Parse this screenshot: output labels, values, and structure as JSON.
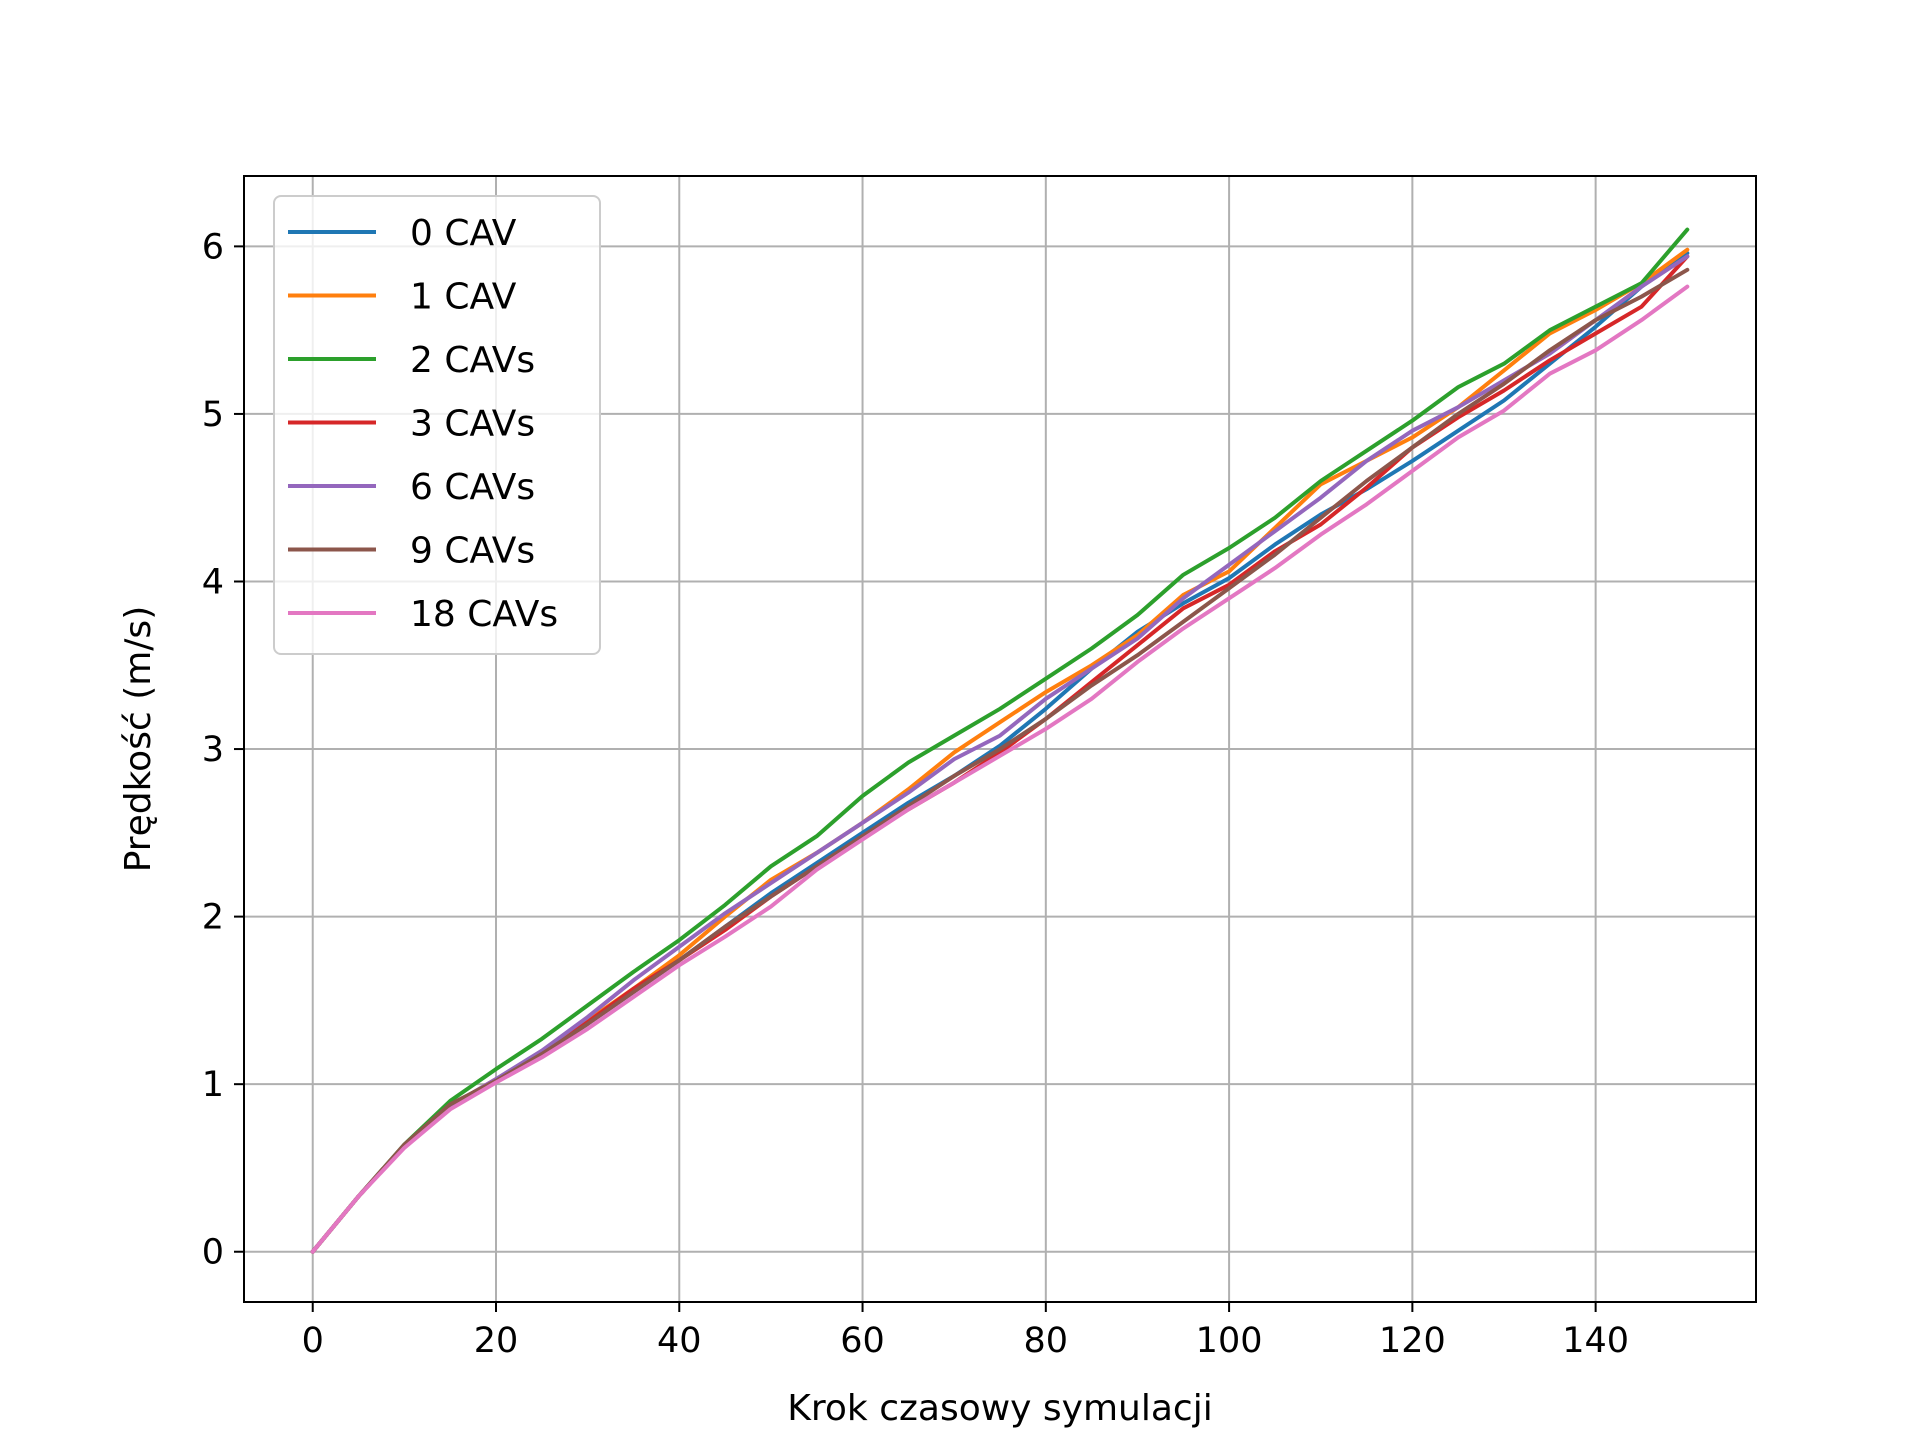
{
  "chart_data": {
    "type": "line",
    "title": "",
    "xlabel": "Krok czasowy symulacji",
    "ylabel": "Prędkość (m/s)",
    "xlim": [
      -7.5,
      157.5
    ],
    "ylim": [
      -0.3,
      6.42
    ],
    "xticks": [
      0,
      20,
      40,
      60,
      80,
      100,
      120,
      140
    ],
    "yticks": [
      0,
      1,
      2,
      3,
      4,
      5,
      6
    ],
    "grid": true,
    "legend_position": "upper-left",
    "series": [
      {
        "name": "0 CAV",
        "color": "#1f77b4",
        "x": [
          0,
          5,
          10,
          15,
          20,
          25,
          30,
          35,
          40,
          45,
          50,
          55,
          60,
          65,
          70,
          75,
          80,
          85,
          90,
          95,
          100,
          105,
          110,
          115,
          120,
          125,
          130,
          135,
          140,
          145,
          150
        ],
        "y": [
          0,
          0.33,
          0.63,
          0.86,
          1.02,
          1.18,
          1.36,
          1.55,
          1.74,
          1.94,
          2.14,
          2.32,
          2.5,
          2.68,
          2.84,
          3.02,
          3.24,
          3.48,
          3.7,
          3.87,
          4.02,
          4.22,
          4.4,
          4.55,
          4.72,
          4.9,
          5.08,
          5.3,
          5.52,
          5.76,
          5.96
        ]
      },
      {
        "name": "1 CAV",
        "color": "#ff7f0e",
        "x": [
          0,
          5,
          10,
          15,
          20,
          25,
          30,
          35,
          40,
          45,
          50,
          55,
          60,
          65,
          70,
          75,
          80,
          85,
          90,
          95,
          100,
          105,
          110,
          115,
          120,
          125,
          130,
          135,
          140,
          145,
          150
        ],
        "y": [
          0,
          0.33,
          0.63,
          0.86,
          1.02,
          1.19,
          1.38,
          1.57,
          1.77,
          2.0,
          2.22,
          2.38,
          2.56,
          2.76,
          2.98,
          3.16,
          3.34,
          3.5,
          3.68,
          3.92,
          4.06,
          4.32,
          4.58,
          4.72,
          4.86,
          5.04,
          5.26,
          5.48,
          5.62,
          5.78,
          5.98
        ]
      },
      {
        "name": "2 CAVs",
        "color": "#2ca02c",
        "x": [
          0,
          5,
          10,
          15,
          20,
          25,
          30,
          35,
          40,
          45,
          50,
          55,
          60,
          65,
          70,
          75,
          80,
          85,
          90,
          95,
          100,
          105,
          110,
          115,
          120,
          125,
          130,
          135,
          140,
          145,
          150
        ],
        "y": [
          0,
          0.33,
          0.64,
          0.9,
          1.09,
          1.27,
          1.47,
          1.67,
          1.86,
          2.07,
          2.3,
          2.48,
          2.72,
          2.92,
          3.08,
          3.24,
          3.42,
          3.6,
          3.8,
          4.04,
          4.2,
          4.38,
          4.6,
          4.78,
          4.96,
          5.16,
          5.3,
          5.5,
          5.64,
          5.78,
          6.1
        ]
      },
      {
        "name": "3 CAVs",
        "color": "#d62728",
        "x": [
          0,
          5,
          10,
          15,
          20,
          25,
          30,
          35,
          40,
          45,
          50,
          55,
          60,
          65,
          70,
          75,
          80,
          85,
          90,
          95,
          100,
          105,
          110,
          115,
          120,
          125,
          130,
          135,
          140,
          145,
          150
        ],
        "y": [
          0,
          0.33,
          0.63,
          0.87,
          1.03,
          1.18,
          1.37,
          1.57,
          1.74,
          1.92,
          2.12,
          2.3,
          2.48,
          2.64,
          2.8,
          2.98,
          3.18,
          3.4,
          3.62,
          3.84,
          3.98,
          4.18,
          4.34,
          4.56,
          4.8,
          4.98,
          5.14,
          5.32,
          5.48,
          5.64,
          5.94
        ]
      },
      {
        "name": "6 CAVs",
        "color": "#9467bd",
        "x": [
          0,
          5,
          10,
          15,
          20,
          25,
          30,
          35,
          40,
          45,
          50,
          55,
          60,
          65,
          70,
          75,
          80,
          85,
          90,
          95,
          100,
          105,
          110,
          115,
          120,
          125,
          130,
          135,
          140,
          145,
          150
        ],
        "y": [
          0,
          0.33,
          0.63,
          0.87,
          1.03,
          1.2,
          1.4,
          1.62,
          1.82,
          2.02,
          2.2,
          2.38,
          2.56,
          2.74,
          2.94,
          3.08,
          3.3,
          3.48,
          3.66,
          3.9,
          4.1,
          4.3,
          4.5,
          4.72,
          4.9,
          5.04,
          5.2,
          5.36,
          5.56,
          5.76,
          5.94
        ]
      },
      {
        "name": "9 CAVs",
        "color": "#8c564b",
        "x": [
          0,
          5,
          10,
          15,
          20,
          25,
          30,
          35,
          40,
          45,
          50,
          55,
          60,
          65,
          70,
          75,
          80,
          85,
          90,
          95,
          100,
          105,
          110,
          115,
          120,
          125,
          130,
          135,
          140,
          145,
          150
        ],
        "y": [
          0,
          0.33,
          0.64,
          0.88,
          1.02,
          1.18,
          1.36,
          1.55,
          1.74,
          1.94,
          2.12,
          2.3,
          2.48,
          2.66,
          2.84,
          3.0,
          3.18,
          3.38,
          3.56,
          3.76,
          3.96,
          4.16,
          4.38,
          4.6,
          4.8,
          5.0,
          5.18,
          5.38,
          5.56,
          5.7,
          5.86
        ]
      },
      {
        "name": "18 CAVs",
        "color": "#e377c2",
        "x": [
          0,
          5,
          10,
          15,
          20,
          25,
          30,
          35,
          40,
          45,
          50,
          55,
          60,
          65,
          70,
          75,
          80,
          85,
          90,
          95,
          100,
          105,
          110,
          115,
          120,
          125,
          130,
          135,
          140,
          145,
          150
        ],
        "y": [
          0,
          0.33,
          0.62,
          0.85,
          1.01,
          1.16,
          1.33,
          1.52,
          1.71,
          1.88,
          2.06,
          2.28,
          2.46,
          2.64,
          2.8,
          2.96,
          3.12,
          3.3,
          3.52,
          3.72,
          3.9,
          4.08,
          4.28,
          4.46,
          4.66,
          4.86,
          5.02,
          5.24,
          5.38,
          5.56,
          5.76
        ]
      }
    ]
  }
}
